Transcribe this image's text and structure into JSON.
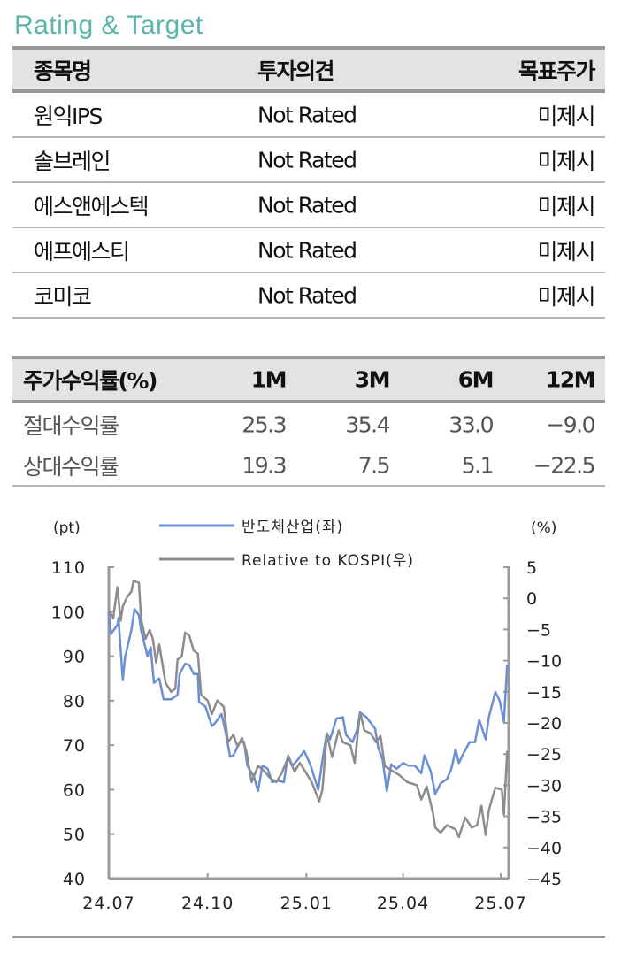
{
  "title": "Rating & Target",
  "rating_table": {
    "headers": [
      "종목명",
      "투자의견",
      "목표주가"
    ],
    "rows": [
      [
        "원익IPS",
        "Not Rated",
        "미제시"
      ],
      [
        "솔브레인",
        "Not Rated",
        "미제시"
      ],
      [
        "에스앤에스텍",
        "Not Rated",
        "미제시"
      ],
      [
        "에프에스티",
        "Not Rated",
        "미제시"
      ],
      [
        "코미코",
        "Not Rated",
        "미제시"
      ]
    ]
  },
  "return_table": {
    "headers": [
      "주가수익률(%)",
      "1M",
      "3M",
      "6M",
      "12M"
    ],
    "rows": [
      [
        "절대수익률",
        "25.3",
        "35.4",
        "33.0",
        "−9.0"
      ],
      [
        "상대수익률",
        "19.3",
        "7.5",
        "5.1",
        "−22.5"
      ]
    ]
  },
  "chart_data": {
    "type": "line",
    "left_unit": "(pt)",
    "right_unit": "(%)",
    "left_ylim": [
      40,
      110
    ],
    "left_ticks": [
      "110",
      "100",
      "90",
      "80",
      "70",
      "60",
      "50",
      "40"
    ],
    "right_ylim": [
      -45,
      5
    ],
    "right_ticks": [
      "5",
      "0",
      "−5",
      "−10",
      "−15",
      "−20",
      "−25",
      "−30",
      "−35",
      "−40",
      "−45"
    ],
    "x_ticks": [
      {
        "label": "24.07",
        "date": "2024-07-01"
      },
      {
        "label": "24.10",
        "date": "2024-10-01"
      },
      {
        "label": "25.01",
        "date": "2025-01-01"
      },
      {
        "label": "25.04",
        "date": "2025-04-01"
      },
      {
        "label": "25.07",
        "date": "2025-07-01"
      }
    ],
    "grid": false,
    "legend_placement": "top",
    "series": [
      {
        "name": "반도체산업(좌)",
        "axis": "left",
        "color": "#6a8fd6",
        "points": [
          [
            "2024-07-01",
            99.9
          ],
          [
            "2024-07-03",
            95
          ],
          [
            "2024-07-09",
            97
          ],
          [
            "2024-07-10",
            98.6
          ],
          [
            "2024-07-14",
            84.6
          ],
          [
            "2024-07-16",
            89.6
          ],
          [
            "2024-07-22",
            95.9
          ],
          [
            "2024-07-25",
            100.6
          ],
          [
            "2024-07-29",
            99.2
          ],
          [
            "2024-07-31",
            95.9
          ],
          [
            "2024-08-06",
            90
          ],
          [
            "2024-08-09",
            92
          ],
          [
            "2024-08-12",
            84
          ],
          [
            "2024-08-17",
            85
          ],
          [
            "2024-08-21",
            80.3
          ],
          [
            "2024-08-28",
            80.3
          ],
          [
            "2024-09-03",
            81.3
          ],
          [
            "2024-09-05",
            86
          ],
          [
            "2024-09-10",
            88.3
          ],
          [
            "2024-09-14",
            88
          ],
          [
            "2024-09-18",
            86
          ],
          [
            "2024-09-22",
            86
          ],
          [
            "2024-09-23",
            79.7
          ],
          [
            "2024-09-29",
            78.7
          ],
          [
            "2024-10-05",
            74.3
          ],
          [
            "2024-10-08",
            75
          ],
          [
            "2024-10-14",
            77
          ],
          [
            "2024-10-18",
            72.7
          ],
          [
            "2024-10-22",
            67.4
          ],
          [
            "2024-10-25",
            67.7
          ],
          [
            "2024-10-31",
            70.7
          ],
          [
            "2024-11-04",
            70.7
          ],
          [
            "2024-11-07",
            65.4
          ],
          [
            "2024-11-13",
            63
          ],
          [
            "2024-11-17",
            59.7
          ],
          [
            "2024-11-21",
            65.4
          ],
          [
            "2024-11-26",
            64.7
          ],
          [
            "2024-11-30",
            61.7
          ],
          [
            "2024-12-06",
            62
          ],
          [
            "2024-12-11",
            61.7
          ],
          [
            "2024-12-15",
            67.7
          ],
          [
            "2024-12-19",
            65.4
          ],
          [
            "2024-12-24",
            66.7
          ],
          [
            "2024-12-30",
            68.7
          ],
          [
            "2025-01-05",
            65.4
          ],
          [
            "2025-01-12",
            60
          ],
          [
            "2025-01-16",
            66.7
          ],
          [
            "2025-01-20",
            72.7
          ],
          [
            "2025-01-23",
            71.3
          ],
          [
            "2025-01-29",
            76
          ],
          [
            "2025-02-04",
            76.3
          ],
          [
            "2025-02-07",
            72.3
          ],
          [
            "2025-02-13",
            70.7
          ],
          [
            "2025-02-17",
            73.3
          ],
          [
            "2025-02-20",
            77.3
          ],
          [
            "2025-02-26",
            76.3
          ],
          [
            "2025-03-06",
            73.7
          ],
          [
            "2025-03-09",
            69.4
          ],
          [
            "2025-03-13",
            66.7
          ],
          [
            "2025-03-17",
            59.7
          ],
          [
            "2025-03-21",
            65.7
          ],
          [
            "2025-03-26",
            64.7
          ],
          [
            "2025-04-01",
            66
          ],
          [
            "2025-04-06",
            65.4
          ],
          [
            "2025-04-12",
            65.4
          ],
          [
            "2025-04-18",
            63.7
          ],
          [
            "2025-04-21",
            67.7
          ],
          [
            "2025-04-27",
            64
          ],
          [
            "2025-05-01",
            59
          ],
          [
            "2025-05-06",
            61.4
          ],
          [
            "2025-05-12",
            62.4
          ],
          [
            "2025-05-16",
            64.7
          ],
          [
            "2025-05-20",
            69
          ],
          [
            "2025-05-23",
            66
          ],
          [
            "2025-05-27",
            68
          ],
          [
            "2025-06-02",
            70.7
          ],
          [
            "2025-06-07",
            70.7
          ],
          [
            "2025-06-11",
            75.7
          ],
          [
            "2025-06-17",
            71.3
          ],
          [
            "2025-06-20",
            76.3
          ],
          [
            "2025-06-26",
            82
          ],
          [
            "2025-06-30",
            80
          ],
          [
            "2025-07-04",
            75.3
          ],
          [
            "2025-07-07",
            88
          ]
        ]
      },
      {
        "name": "Relative to KOSPI(우)",
        "axis": "right",
        "color": "#8c8c8c",
        "points": [
          [
            "2024-07-01",
            -2
          ],
          [
            "2024-07-05",
            -3.2
          ],
          [
            "2024-07-09",
            1.8
          ],
          [
            "2024-07-12",
            -3.6
          ],
          [
            "2024-07-14",
            -1.3
          ],
          [
            "2024-07-18",
            0.2
          ],
          [
            "2024-07-22",
            1.1
          ],
          [
            "2024-07-24",
            2.8
          ],
          [
            "2024-07-29",
            2.5
          ],
          [
            "2024-07-31",
            -3.2
          ],
          [
            "2024-08-04",
            -6.5
          ],
          [
            "2024-08-08",
            -5.1
          ],
          [
            "2024-08-11",
            -6.5
          ],
          [
            "2024-08-14",
            -10.3
          ],
          [
            "2024-08-17",
            -7.4
          ],
          [
            "2024-08-21",
            -11.7
          ],
          [
            "2024-08-23",
            -13.6
          ],
          [
            "2024-08-28",
            -15
          ],
          [
            "2024-09-01",
            -14.5
          ],
          [
            "2024-09-03",
            -9.8
          ],
          [
            "2024-09-07",
            -9.3
          ],
          [
            "2024-09-10",
            -5.5
          ],
          [
            "2024-09-14",
            -6
          ],
          [
            "2024-09-18",
            -8.4
          ],
          [
            "2024-09-22",
            -8.9
          ],
          [
            "2024-09-25",
            -15.5
          ],
          [
            "2024-10-01",
            -16.4
          ],
          [
            "2024-10-05",
            -18.6
          ],
          [
            "2024-10-10",
            -16.4
          ],
          [
            "2024-10-16",
            -17.4
          ],
          [
            "2024-10-20",
            -23.1
          ],
          [
            "2024-10-25",
            -21.9
          ],
          [
            "2024-10-29",
            -23.8
          ],
          [
            "2024-11-02",
            -22.4
          ],
          [
            "2024-11-06",
            -24.5
          ],
          [
            "2024-11-11",
            -29.5
          ],
          [
            "2024-11-17",
            -26.9
          ],
          [
            "2024-11-22",
            -27.6
          ],
          [
            "2024-11-28",
            -28.8
          ],
          [
            "2024-12-04",
            -29.5
          ],
          [
            "2024-12-09",
            -28.1
          ],
          [
            "2024-12-15",
            -25.5
          ],
          [
            "2024-12-21",
            -27.8
          ],
          [
            "2024-12-26",
            -26.4
          ],
          [
            "2025-01-01",
            -28.1
          ],
          [
            "2025-01-06",
            -29.5
          ],
          [
            "2025-01-13",
            -32.6
          ],
          [
            "2025-01-16",
            -30.7
          ],
          [
            "2025-01-20",
            -21.7
          ],
          [
            "2025-01-25",
            -25.5
          ],
          [
            "2025-01-31",
            -21.2
          ],
          [
            "2025-02-04",
            -23.1
          ],
          [
            "2025-02-11",
            -23.6
          ],
          [
            "2025-02-15",
            -26.4
          ],
          [
            "2025-02-20",
            -18.3
          ],
          [
            "2025-02-24",
            -21.2
          ],
          [
            "2025-03-02",
            -21.7
          ],
          [
            "2025-03-07",
            -23.1
          ],
          [
            "2025-03-11",
            -22.1
          ],
          [
            "2025-03-15",
            -26.9
          ],
          [
            "2025-03-21",
            -27.6
          ],
          [
            "2025-03-28",
            -28.3
          ],
          [
            "2025-04-05",
            -29.5
          ],
          [
            "2025-04-14",
            -30
          ],
          [
            "2025-04-18",
            -32.3
          ],
          [
            "2025-04-23",
            -30.2
          ],
          [
            "2025-04-29",
            -34.5
          ],
          [
            "2025-05-01",
            -36.8
          ],
          [
            "2025-05-06",
            -37.6
          ],
          [
            "2025-05-12",
            -36.4
          ],
          [
            "2025-05-20",
            -37.1
          ],
          [
            "2025-05-23",
            -38.3
          ],
          [
            "2025-05-29",
            -35.2
          ],
          [
            "2025-06-04",
            -36.8
          ],
          [
            "2025-06-09",
            -36.4
          ],
          [
            "2025-06-13",
            -33.3
          ],
          [
            "2025-06-17",
            -38
          ],
          [
            "2025-06-20",
            -34
          ],
          [
            "2025-06-26",
            -30.4
          ],
          [
            "2025-07-02",
            -30.7
          ],
          [
            "2025-07-04",
            -34.7
          ],
          [
            "2025-07-07",
            -24.5
          ]
        ]
      }
    ]
  }
}
